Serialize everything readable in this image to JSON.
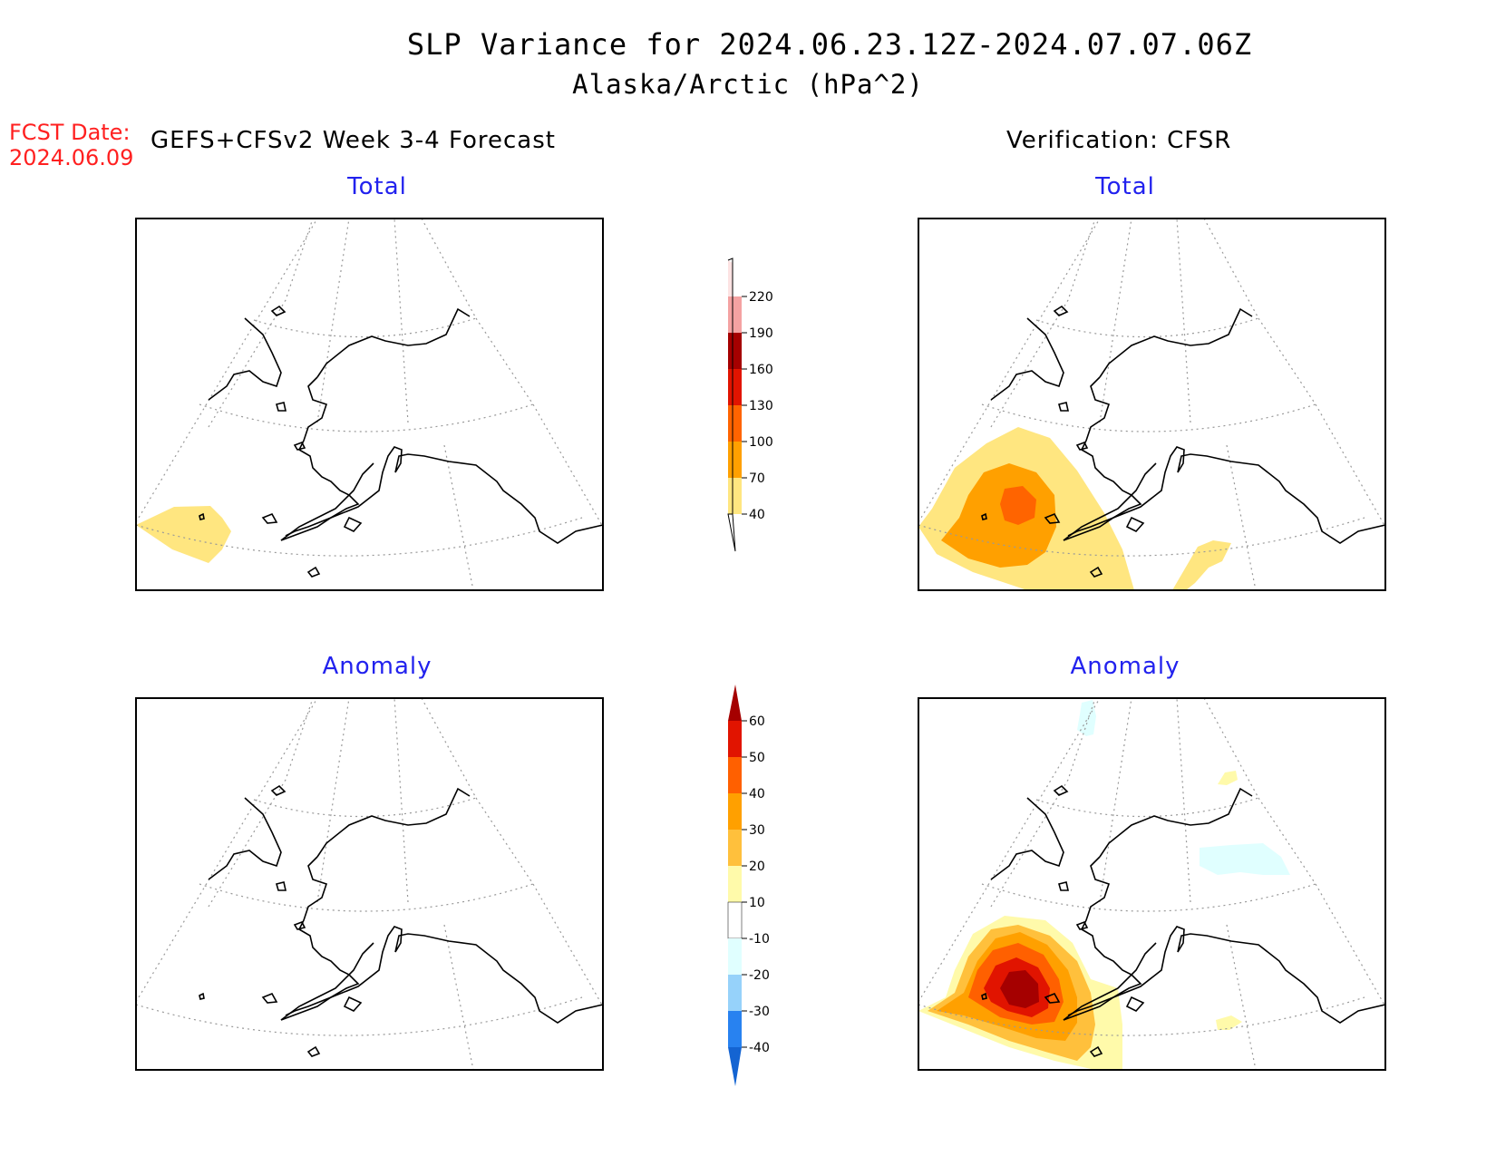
{
  "header": {
    "title": "SLP Variance for 2024.06.23.12Z-2024.07.07.06Z",
    "subtitle": "Alaska/Arctic (hPa^2)",
    "fcst_label": "FCST Date:",
    "fcst_date": "2024.06.09",
    "left_column_title": "GEFS+CFSv2 Week 3-4 Forecast",
    "right_column_title": "Verification: CFSR"
  },
  "panels": {
    "top_left": {
      "label": "Total"
    },
    "top_right": {
      "label": "Total"
    },
    "bottom_left": {
      "label": "Anomaly"
    },
    "bottom_right": {
      "label": "Anomaly"
    }
  },
  "colorbars": {
    "total": {
      "labels": [
        "40",
        "70",
        "100",
        "130",
        "160",
        "190",
        "220"
      ],
      "colors": [
        "#ffe680",
        "#ffa000",
        "#ff6400",
        "#e11400",
        "#a50000",
        "#f4a2a2",
        "#fde3e3"
      ]
    },
    "anomaly": {
      "labels": [
        "-40",
        "-30",
        "-20",
        "-10",
        "10",
        "20",
        "30",
        "40",
        "50",
        "60"
      ],
      "colors": [
        "#1464d2",
        "#2882f0",
        "#96d2fa",
        "#e0ffff",
        "#ffffff",
        "#fffaaa",
        "#ffc03c",
        "#ffa000",
        "#ff6000",
        "#e11400",
        "#a50000"
      ]
    }
  },
  "colors": {
    "fcst": "#ff2020",
    "panel_label": "#2222ee"
  }
}
